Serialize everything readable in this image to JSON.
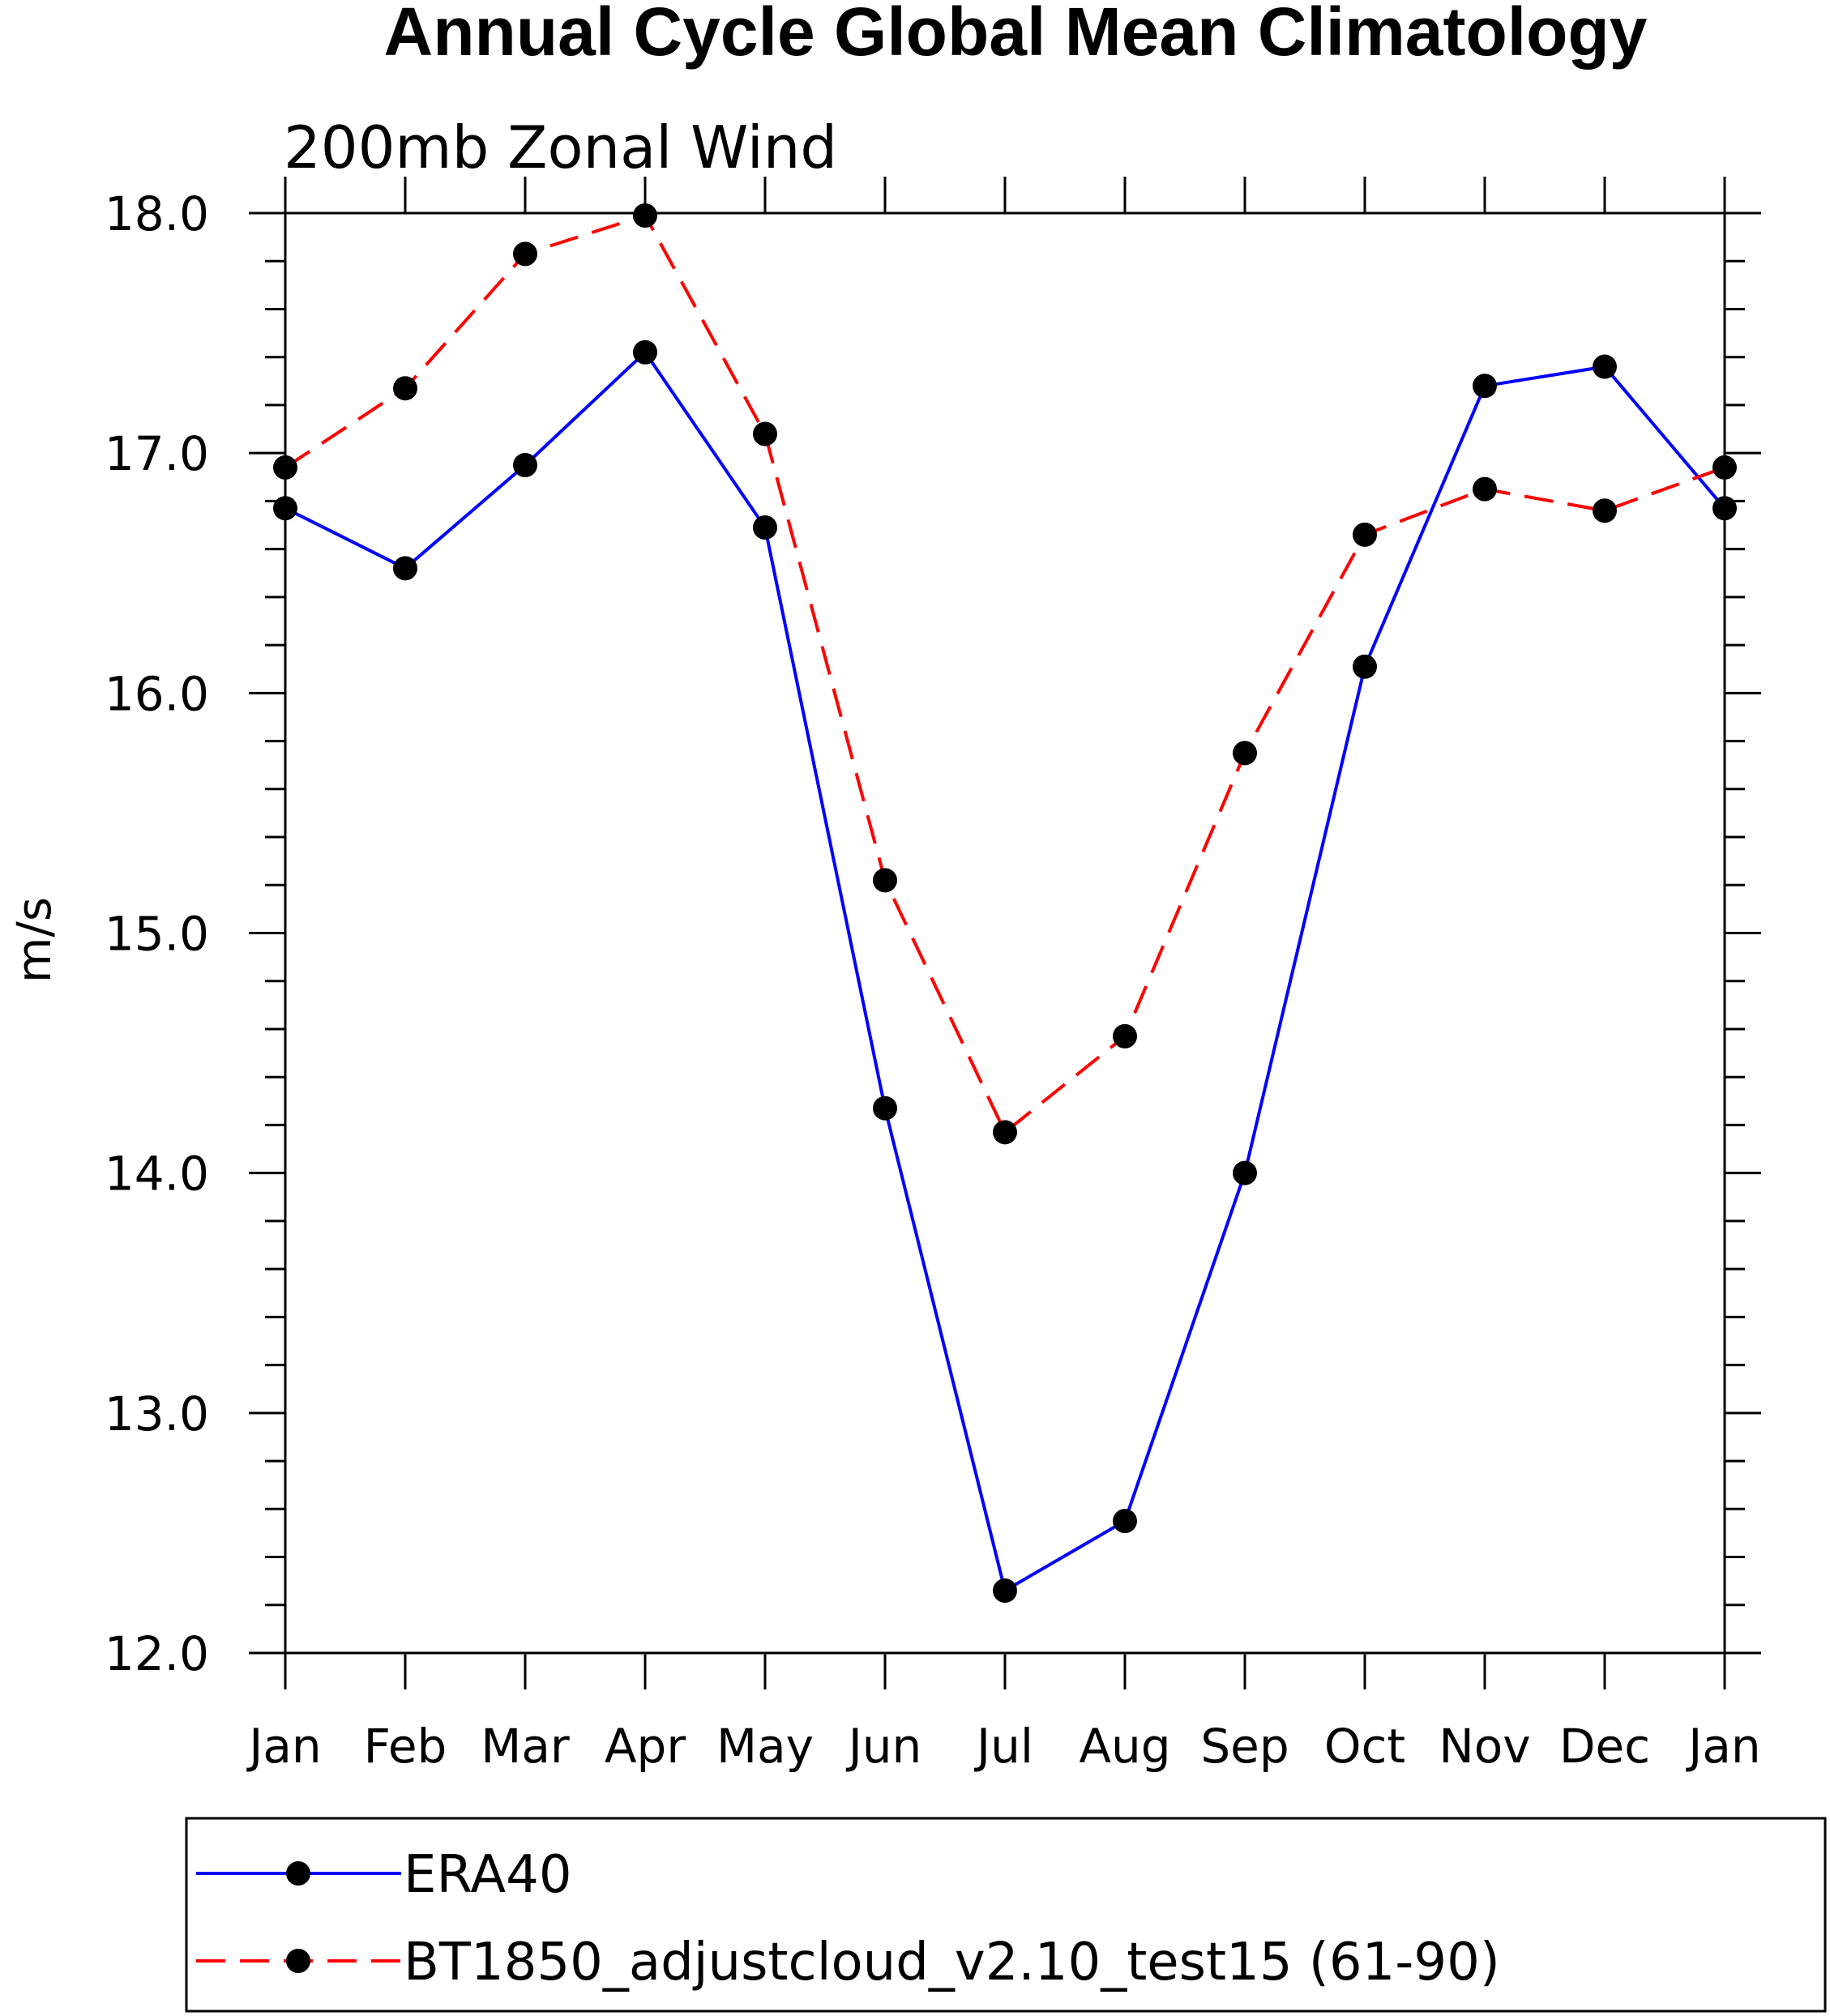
{
  "chart_data": {
    "type": "line",
    "title": "Annual Cycle Global Mean Climatology",
    "subtitle": "200mb Zonal Wind",
    "xlabel": "",
    "ylabel": "m/s",
    "ylim": [
      12.0,
      18.0
    ],
    "yticks": [
      "12.0",
      "13.0",
      "14.0",
      "15.0",
      "16.0",
      "17.0",
      "18.0"
    ],
    "categories": [
      "Jan",
      "Feb",
      "Mar",
      "Apr",
      "May",
      "Jun",
      "Jul",
      "Aug",
      "Sep",
      "Oct",
      "Nov",
      "Dec",
      "Jan"
    ],
    "grid": false,
    "legend_position": "bottom",
    "series": [
      {
        "name": "ERA40",
        "color": "#0000ff",
        "dash": "solid",
        "marker": "filled-circle",
        "values": [
          16.77,
          16.52,
          16.95,
          17.42,
          16.69,
          14.27,
          12.26,
          12.55,
          14.0,
          16.11,
          17.28,
          17.36,
          16.77
        ]
      },
      {
        "name": "BT1850_adjustcloud_v2.10_test15 (61-90)",
        "color": "#ff0000",
        "dash": "dashed",
        "marker": "filled-circle",
        "values": [
          16.94,
          17.27,
          17.83,
          17.99,
          17.08,
          15.22,
          14.17,
          14.57,
          15.75,
          16.66,
          16.85,
          16.76,
          16.94
        ]
      }
    ]
  }
}
